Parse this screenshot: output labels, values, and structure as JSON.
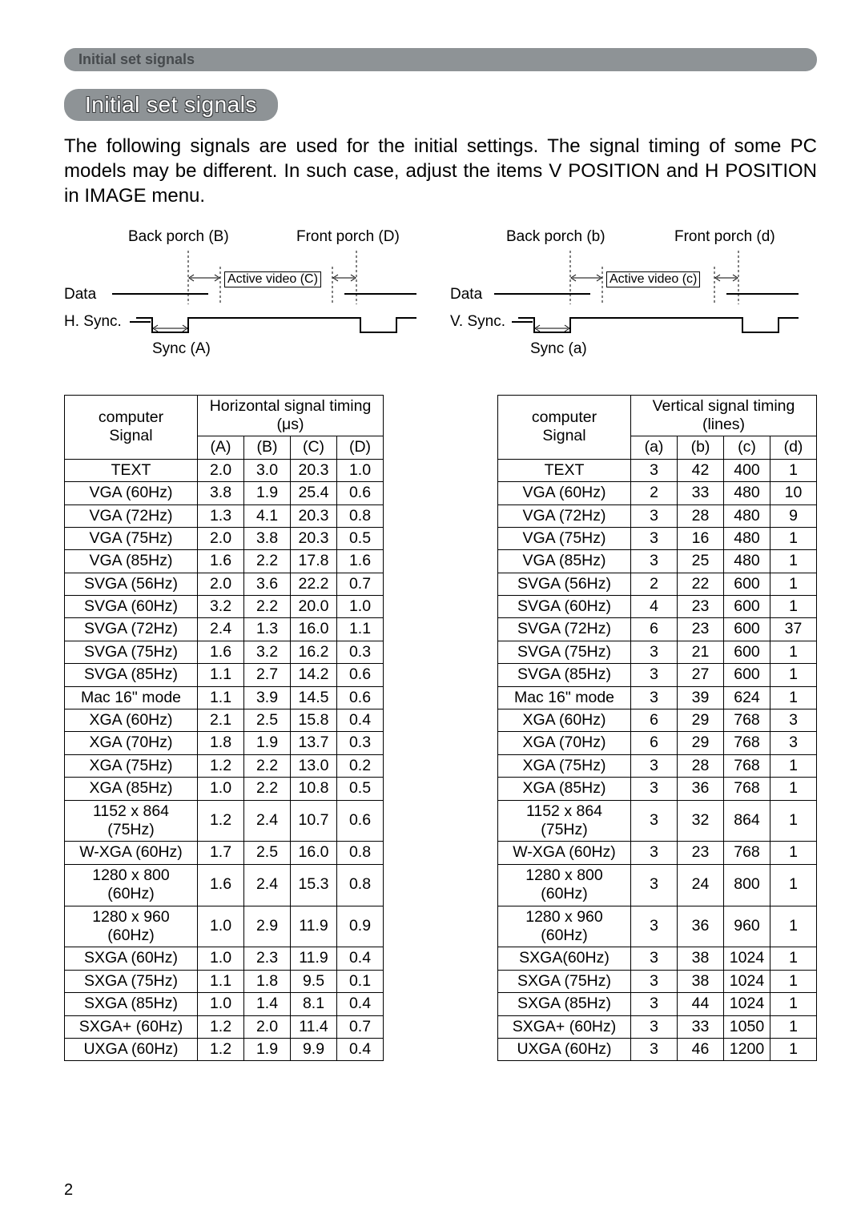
{
  "header_bar": "Initial set signals",
  "title": "Initial set signals",
  "intro": "The following signals are used for the initial settings. The signal timing of some PC models may be different. In such case, adjust the items V POSITION and H POSITION in IMAGE menu.",
  "page_number": "2",
  "diagram_h": {
    "back_porch": "Back porch (B)",
    "front_porch": "Front porch (D)",
    "active_video": "Active video (C)",
    "data": "Data",
    "sync_lbl": "H. Sync.",
    "sync_a": "Sync (A)"
  },
  "diagram_v": {
    "back_porch": "Back porch (b)",
    "front_porch": "Front porch (d)",
    "active_video": "Active video (c)",
    "data": "Data",
    "sync_lbl": "V. Sync.",
    "sync_a": "Sync (a)"
  },
  "table_h": {
    "caption1": "computer",
    "caption2": "Signal",
    "timing_header": "Horizontal signal timing (μs)",
    "cols": [
      "(A)",
      "(B)",
      "(C)",
      "(D)"
    ],
    "rows": [
      {
        "s": "TEXT",
        "v": [
          "2.0",
          "3.0",
          "20.3",
          "1.0"
        ]
      },
      {
        "s": "VGA (60Hz)",
        "v": [
          "3.8",
          "1.9",
          "25.4",
          "0.6"
        ]
      },
      {
        "s": "VGA (72Hz)",
        "v": [
          "1.3",
          "4.1",
          "20.3",
          "0.8"
        ]
      },
      {
        "s": "VGA (75Hz)",
        "v": [
          "2.0",
          "3.8",
          "20.3",
          "0.5"
        ]
      },
      {
        "s": "VGA (85Hz)",
        "v": [
          "1.6",
          "2.2",
          "17.8",
          "1.6"
        ]
      },
      {
        "s": "SVGA (56Hz)",
        "v": [
          "2.0",
          "3.6",
          "22.2",
          "0.7"
        ]
      },
      {
        "s": "SVGA (60Hz)",
        "v": [
          "3.2",
          "2.2",
          "20.0",
          "1.0"
        ]
      },
      {
        "s": "SVGA (72Hz)",
        "v": [
          "2.4",
          "1.3",
          "16.0",
          "1.1"
        ]
      },
      {
        "s": "SVGA (75Hz)",
        "v": [
          "1.6",
          "3.2",
          "16.2",
          "0.3"
        ]
      },
      {
        "s": "SVGA (85Hz)",
        "v": [
          "1.1",
          "2.7",
          "14.2",
          "0.6"
        ]
      },
      {
        "s": "Mac 16\" mode",
        "v": [
          "1.1",
          "3.9",
          "14.5",
          "0.6"
        ]
      },
      {
        "s": "XGA (60Hz)",
        "v": [
          "2.1",
          "2.5",
          "15.8",
          "0.4"
        ]
      },
      {
        "s": "XGA (70Hz)",
        "v": [
          "1.8",
          "1.9",
          "13.7",
          "0.3"
        ]
      },
      {
        "s": "XGA (75Hz)",
        "v": [
          "1.2",
          "2.2",
          "13.0",
          "0.2"
        ]
      },
      {
        "s": "XGA (85Hz)",
        "v": [
          "1.0",
          "2.2",
          "10.8",
          "0.5"
        ]
      },
      {
        "s": "1152 x 864 (75Hz)",
        "v": [
          "1.2",
          "2.4",
          "10.7",
          "0.6"
        ]
      },
      {
        "s": "W-XGA (60Hz)",
        "v": [
          "1.7",
          "2.5",
          "16.0",
          "0.8"
        ]
      },
      {
        "s": "1280 x 800 (60Hz)",
        "v": [
          "1.6",
          "2.4",
          "15.3",
          "0.8"
        ]
      },
      {
        "s": "1280 x 960 (60Hz)",
        "v": [
          "1.0",
          "2.9",
          "11.9",
          "0.9"
        ]
      },
      {
        "s": "SXGA (60Hz)",
        "v": [
          "1.0",
          "2.3",
          "11.9",
          "0.4"
        ]
      },
      {
        "s": "SXGA (75Hz)",
        "v": [
          "1.1",
          "1.8",
          "9.5",
          "0.1"
        ]
      },
      {
        "s": "SXGA (85Hz)",
        "v": [
          "1.0",
          "1.4",
          "8.1",
          "0.4"
        ]
      },
      {
        "s": "SXGA+ (60Hz)",
        "v": [
          "1.2",
          "2.0",
          "11.4",
          "0.7"
        ]
      },
      {
        "s": "UXGA (60Hz)",
        "v": [
          "1.2",
          "1.9",
          "9.9",
          "0.4"
        ]
      }
    ]
  },
  "table_v": {
    "caption1": "computer",
    "caption2": "Signal",
    "timing_header": "Vertical signal timing (lines)",
    "cols": [
      "(a)",
      "(b)",
      "(c)",
      "(d)"
    ],
    "rows": [
      {
        "s": "TEXT",
        "v": [
          "3",
          "42",
          "400",
          "1"
        ]
      },
      {
        "s": "VGA (60Hz)",
        "v": [
          "2",
          "33",
          "480",
          "10"
        ]
      },
      {
        "s": "VGA (72Hz)",
        "v": [
          "3",
          "28",
          "480",
          "9"
        ]
      },
      {
        "s": "VGA (75Hz)",
        "v": [
          "3",
          "16",
          "480",
          "1"
        ]
      },
      {
        "s": "VGA (85Hz)",
        "v": [
          "3",
          "25",
          "480",
          "1"
        ]
      },
      {
        "s": "SVGA (56Hz)",
        "v": [
          "2",
          "22",
          "600",
          "1"
        ]
      },
      {
        "s": "SVGA (60Hz)",
        "v": [
          "4",
          "23",
          "600",
          "1"
        ]
      },
      {
        "s": "SVGA (72Hz)",
        "v": [
          "6",
          "23",
          "600",
          "37"
        ]
      },
      {
        "s": "SVGA (75Hz)",
        "v": [
          "3",
          "21",
          "600",
          "1"
        ]
      },
      {
        "s": "SVGA (85Hz)",
        "v": [
          "3",
          "27",
          "600",
          "1"
        ]
      },
      {
        "s": "Mac 16\" mode",
        "v": [
          "3",
          "39",
          "624",
          "1"
        ]
      },
      {
        "s": "XGA (60Hz)",
        "v": [
          "6",
          "29",
          "768",
          "3"
        ]
      },
      {
        "s": "XGA (70Hz)",
        "v": [
          "6",
          "29",
          "768",
          "3"
        ]
      },
      {
        "s": "XGA (75Hz)",
        "v": [
          "3",
          "28",
          "768",
          "1"
        ]
      },
      {
        "s": "XGA (85Hz)",
        "v": [
          "3",
          "36",
          "768",
          "1"
        ]
      },
      {
        "s": "1152 x 864 (75Hz)",
        "v": [
          "3",
          "32",
          "864",
          "1"
        ]
      },
      {
        "s": "W-XGA (60Hz)",
        "v": [
          "3",
          "23",
          "768",
          "1"
        ]
      },
      {
        "s": "1280 x 800 (60Hz)",
        "v": [
          "3",
          "24",
          "800",
          "1"
        ]
      },
      {
        "s": "1280 x 960 (60Hz)",
        "v": [
          "3",
          "36",
          "960",
          "1"
        ]
      },
      {
        "s": "SXGA(60Hz)",
        "v": [
          "3",
          "38",
          "1024",
          "1"
        ]
      },
      {
        "s": "SXGA (75Hz)",
        "v": [
          "3",
          "38",
          "1024",
          "1"
        ]
      },
      {
        "s": "SXGA (85Hz)",
        "v": [
          "3",
          "44",
          "1024",
          "1"
        ]
      },
      {
        "s": "SXGA+ (60Hz)",
        "v": [
          "3",
          "33",
          "1050",
          "1"
        ]
      },
      {
        "s": "UXGA (60Hz)",
        "v": [
          "3",
          "46",
          "1200",
          "1"
        ]
      }
    ]
  },
  "colors": {
    "bar_bg": "#8e9396",
    "bar_text": "#464a4d",
    "title_text": "#ffffff",
    "title_outline": "#3a3c3e",
    "border": "#000000",
    "page_bg": "#ffffff"
  }
}
